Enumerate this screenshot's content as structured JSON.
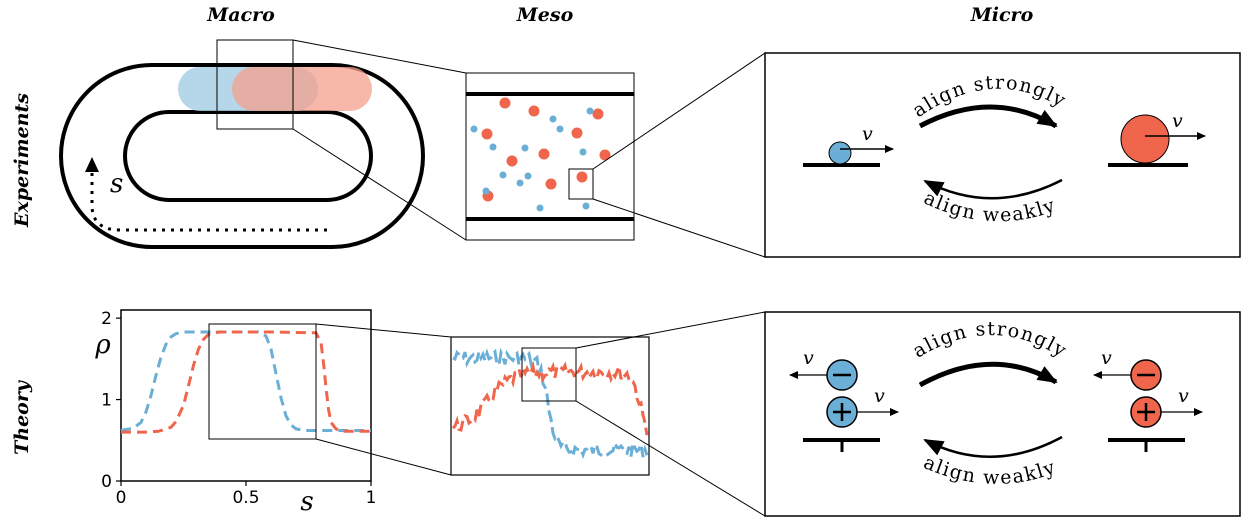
{
  "headers": {
    "macro": "Macro",
    "meso": "Meso",
    "micro": "Micro"
  },
  "rows": {
    "experiments": "Experiments",
    "theory": "Theory"
  },
  "experiments": {
    "track_label": "s",
    "speed_label": "v",
    "arrow_top": "align strongly",
    "arrow_bottom": "align weakly"
  },
  "theory": {
    "speed_label": "v",
    "arrow_top": "align strongly",
    "arrow_bottom": "align weakly"
  },
  "colors": {
    "blue": "#6baed6",
    "red": "#f0664c",
    "blue_fill": "#a9cfe6",
    "red_fill": "#f4a08c"
  },
  "chart_data": {
    "type": "line",
    "xlabel": "s",
    "ylabel": "ρ",
    "xlim": [
      0,
      1
    ],
    "ylim": [
      0,
      2.1
    ],
    "xticks": [
      "0",
      "0.5",
      "1"
    ],
    "yticks": [
      "0",
      "1",
      "2"
    ],
    "series": [
      {
        "color": "#6baed6",
        "x": [
          0,
          0.05,
          0.08,
          0.1,
          0.12,
          0.14,
          0.16,
          0.18,
          0.2,
          0.22,
          0.25,
          0.3,
          0.4,
          0.55,
          0.58,
          0.6,
          0.62,
          0.64,
          0.66,
          0.68,
          0.7,
          0.74,
          0.8,
          0.9,
          1.0
        ],
        "y": [
          0.62,
          0.65,
          0.72,
          0.85,
          1.05,
          1.3,
          1.52,
          1.68,
          1.77,
          1.81,
          1.83,
          1.83,
          1.83,
          1.83,
          1.78,
          1.62,
          1.32,
          1.02,
          0.8,
          0.69,
          0.64,
          0.62,
          0.62,
          0.62,
          0.62
        ]
      },
      {
        "color": "#f0664c",
        "x": [
          0,
          0.1,
          0.15,
          0.2,
          0.22,
          0.25,
          0.27,
          0.29,
          0.31,
          0.33,
          0.35,
          0.37,
          0.4,
          0.5,
          0.6,
          0.78,
          0.8,
          0.81,
          0.82,
          0.83,
          0.84,
          0.86,
          0.88,
          0.92,
          1.0
        ],
        "y": [
          0.6,
          0.6,
          0.61,
          0.66,
          0.73,
          0.93,
          1.17,
          1.42,
          1.62,
          1.74,
          1.8,
          1.82,
          1.83,
          1.83,
          1.83,
          1.82,
          1.7,
          1.45,
          1.15,
          0.88,
          0.72,
          0.64,
          0.61,
          0.61,
          0.61
        ]
      }
    ]
  }
}
